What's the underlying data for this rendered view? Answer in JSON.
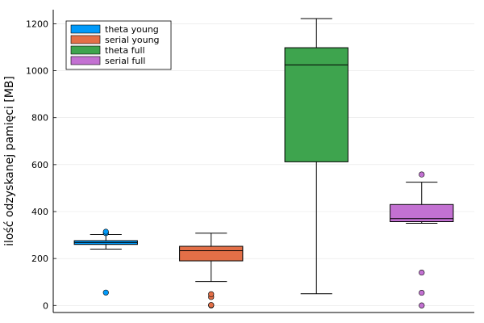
{
  "chart_data": {
    "type": "box",
    "title": "",
    "xlabel": "",
    "ylabel": "ilość odzyskanej pamięci [MB]",
    "ylim": [
      -30,
      1260
    ],
    "yticks": [
      0,
      200,
      400,
      600,
      800,
      1000,
      1200
    ],
    "grid": true,
    "legend_position": "top-left",
    "series": [
      {
        "name": "theta young",
        "color": "#009AFA",
        "min": 240,
        "q1": 260,
        "median": 268,
        "q3": 276,
        "max": 302,
        "outliers": [
          55,
          308,
          314
        ]
      },
      {
        "name": "serial young",
        "color": "#E36F47",
        "min": 102,
        "q1": 190,
        "median": 233,
        "q3": 252,
        "max": 308,
        "outliers": [
          0,
          2,
          36,
          48
        ]
      },
      {
        "name": "theta full",
        "color": "#3EA44E",
        "min": 50,
        "q1": 612,
        "median": 1025,
        "q3": 1098,
        "max": 1222,
        "outliers": []
      },
      {
        "name": "serial full",
        "color": "#C371D2",
        "min": 350,
        "q1": 357,
        "median": 370,
        "q3": 430,
        "max": 525,
        "outliers": [
          0,
          54,
          140,
          558
        ]
      }
    ]
  }
}
